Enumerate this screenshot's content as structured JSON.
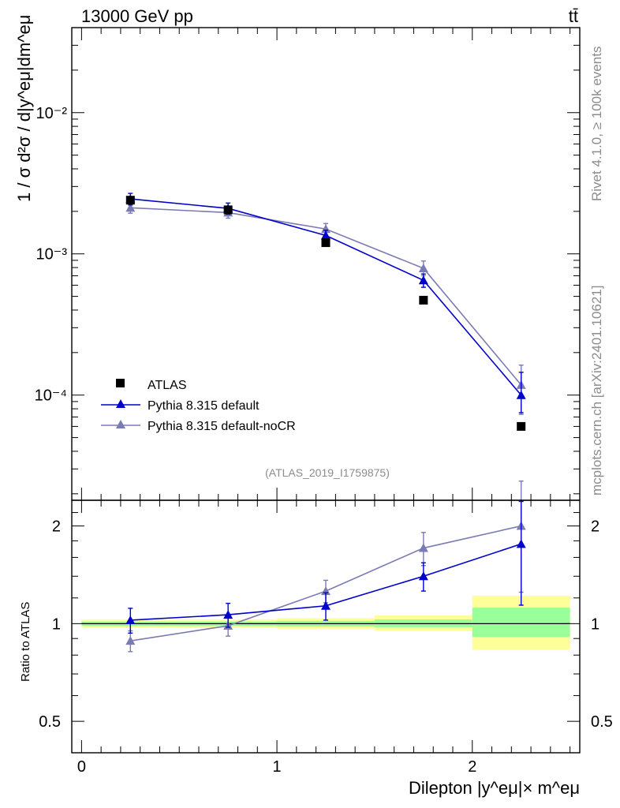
{
  "header": {
    "energy_label": "13000 GeV pp",
    "process_label": "tt̄"
  },
  "side_labels": {
    "rivet": "Rivet 4.1.0, ≥ 100k events",
    "mcplots": "mcplots.cern.ch [arXiv:2401.10621]"
  },
  "analysis_id": "(ATLAS_2019_I1759875)",
  "colors": {
    "atlas": "#000000",
    "default": "#0000cc",
    "nocr": "#7b7bb4",
    "band_inner": "#99ff99",
    "band_outer": "#ffff99"
  },
  "chart_data": [
    {
      "type": "line",
      "title": "",
      "ylabel": "1 / σ  d²σ / d|y^eμ|dm^eμ",
      "yscale": "log",
      "ylim": [
        1.8e-05,
        0.04
      ],
      "xlim": [
        -0.05,
        2.55
      ],
      "ytick_labels": [
        "10⁻⁴",
        "10⁻³",
        "10⁻²"
      ],
      "ytick_values": [
        0.0001,
        0.001,
        0.01
      ],
      "legend": {
        "position": "bottom-left",
        "entries": [
          "ATLAS",
          "Pythia 8.315 default",
          "Pythia 8.315 default-noCR"
        ]
      },
      "series": [
        {
          "name": "ATLAS",
          "marker": "square",
          "x": [
            0.25,
            0.75,
            1.25,
            1.75,
            2.25
          ],
          "values": [
            0.0024,
            0.00205,
            0.0012,
            0.00047,
            6e-05
          ]
        },
        {
          "name": "Pythia 8.315 default",
          "marker": "triangle",
          "x": [
            0.25,
            0.75,
            1.25,
            1.75,
            2.25
          ],
          "values": [
            0.00245,
            0.0021,
            0.00135,
            0.00065,
            0.0001
          ],
          "err_lo": [
            0.00023,
            0.00019,
            0.00012,
            7e-05,
            2.5e-05
          ],
          "err_hi": [
            0.00023,
            0.00019,
            0.00012,
            7e-05,
            4.5e-05
          ]
        },
        {
          "name": "Pythia 8.315 default-noCR",
          "marker": "triangle",
          "x": [
            0.25,
            0.75,
            1.25,
            1.75,
            2.25
          ],
          "values": [
            0.00212,
            0.00196,
            0.0015,
            0.00079,
            0.000118
          ],
          "err_lo": [
            0.00018,
            0.00017,
            0.00014,
            9e-05,
            4.5e-05
          ],
          "err_hi": [
            0.00018,
            0.00017,
            0.00014,
            0.0001,
            4.5e-05
          ]
        }
      ]
    },
    {
      "type": "line",
      "ylabel": "Ratio to ATLAS",
      "xlabel": "Dilepton |y^eμ|× m^eμ",
      "yscale": "log",
      "ylim": [
        0.4,
        2.4
      ],
      "xlim": [
        -0.05,
        2.55
      ],
      "ytick_labels": [
        "0.5",
        "1",
        "2"
      ],
      "ytick_values": [
        0.5,
        1,
        2
      ],
      "xtick_labels": [
        "0",
        "1",
        "2"
      ],
      "xtick_values": [
        0,
        1,
        2
      ],
      "bands": {
        "bins": [
          [
            0,
            0.5
          ],
          [
            0.5,
            1.0
          ],
          [
            1.0,
            1.5
          ],
          [
            1.5,
            2.0
          ],
          [
            2.0,
            2.5
          ]
        ],
        "inner": [
          [
            0.985,
            1.015
          ],
          [
            0.985,
            1.015
          ],
          [
            0.98,
            1.02
          ],
          [
            0.975,
            1.03
          ],
          [
            0.91,
            1.12
          ]
        ],
        "outer": [
          [
            0.97,
            1.03
          ],
          [
            0.97,
            1.03
          ],
          [
            0.965,
            1.04
          ],
          [
            0.95,
            1.06
          ],
          [
            0.83,
            1.22
          ]
        ]
      },
      "series": [
        {
          "name": "Pythia 8.315 default",
          "x": [
            0.25,
            0.75,
            1.25,
            1.75,
            2.25
          ],
          "values": [
            1.025,
            1.065,
            1.135,
            1.4,
            1.76
          ],
          "err_lo": [
            0.09,
            0.09,
            0.11,
            0.14,
            0.62
          ],
          "err_hi": [
            0.09,
            0.09,
            0.11,
            0.14,
            0.62
          ]
        },
        {
          "name": "Pythia 8.315 default-noCR",
          "x": [
            0.25,
            0.75,
            1.25,
            1.75,
            2.25
          ],
          "values": [
            0.885,
            0.985,
            1.26,
            1.71,
            2.0
          ],
          "err_lo": [
            0.065,
            0.07,
            0.1,
            0.2,
            0.75
          ],
          "err_hi": [
            0.065,
            0.07,
            0.1,
            0.2,
            0.75
          ]
        }
      ]
    }
  ]
}
